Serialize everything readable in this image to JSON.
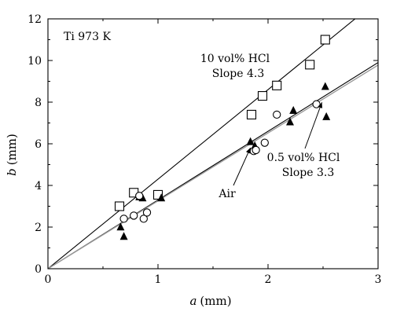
{
  "chart_data": {
    "type": "scatter",
    "title": "",
    "xlabel": {
      "var": "a",
      "unit": "(mm)"
    },
    "ylabel": {
      "var": "b",
      "unit": "(mm)"
    },
    "xlim": [
      0,
      3
    ],
    "ylim": [
      0,
      12
    ],
    "xticks": [
      "0",
      "1",
      "2",
      "3"
    ],
    "yticks": [
      "0",
      "2",
      "4",
      "6",
      "8",
      "10",
      "12"
    ],
    "grid": false,
    "legend": "none",
    "annotations": {
      "condition": "Ti 973 K",
      "hcl10_name": "10 vol% HCl",
      "hcl10_slope": "Slope 4.3",
      "hcl05_name": "0.5 vol% HCl",
      "hcl05_slope": "Slope 3.3",
      "air": "Air"
    },
    "series": [
      {
        "marker": "open-square",
        "points": [
          [
            0.65,
            3.0
          ],
          [
            0.78,
            3.65
          ],
          [
            1.0,
            3.55
          ],
          [
            1.85,
            7.4
          ],
          [
            1.95,
            8.3
          ],
          [
            2.08,
            8.8
          ],
          [
            2.38,
            9.8
          ],
          [
            2.52,
            11.0
          ]
        ]
      },
      {
        "marker": "filled-triangle",
        "points": [
          [
            0.66,
            2.0
          ],
          [
            0.69,
            1.55
          ],
          [
            0.83,
            3.45
          ],
          [
            0.86,
            3.4
          ],
          [
            1.03,
            3.4
          ],
          [
            1.84,
            6.1
          ],
          [
            1.88,
            5.9
          ],
          [
            2.2,
            7.05
          ],
          [
            2.23,
            7.6
          ],
          [
            2.52,
            8.75
          ],
          [
            2.53,
            7.3
          ]
        ]
      },
      {
        "marker": "open-circle",
        "points": [
          [
            0.69,
            2.4
          ],
          [
            0.78,
            2.55
          ],
          [
            0.83,
            3.5
          ],
          [
            0.87,
            2.4
          ],
          [
            0.9,
            2.7
          ],
          [
            1.87,
            5.65
          ],
          [
            1.89,
            5.7
          ],
          [
            1.97,
            6.05
          ],
          [
            2.08,
            7.4
          ],
          [
            2.44,
            7.9
          ]
        ]
      }
    ],
    "fit_lines": [
      {
        "style": "black",
        "slope": 4.3,
        "intercept": 0.0
      },
      {
        "style": "black",
        "slope": 3.3,
        "intercept": 0.0
      },
      {
        "style": "gray",
        "slope": 3.26,
        "intercept": 0.0
      }
    ],
    "colors": {
      "axis": "#000000",
      "marker": "#000000",
      "fit": "#000000",
      "fit_gray": "#9a9a9a"
    }
  }
}
